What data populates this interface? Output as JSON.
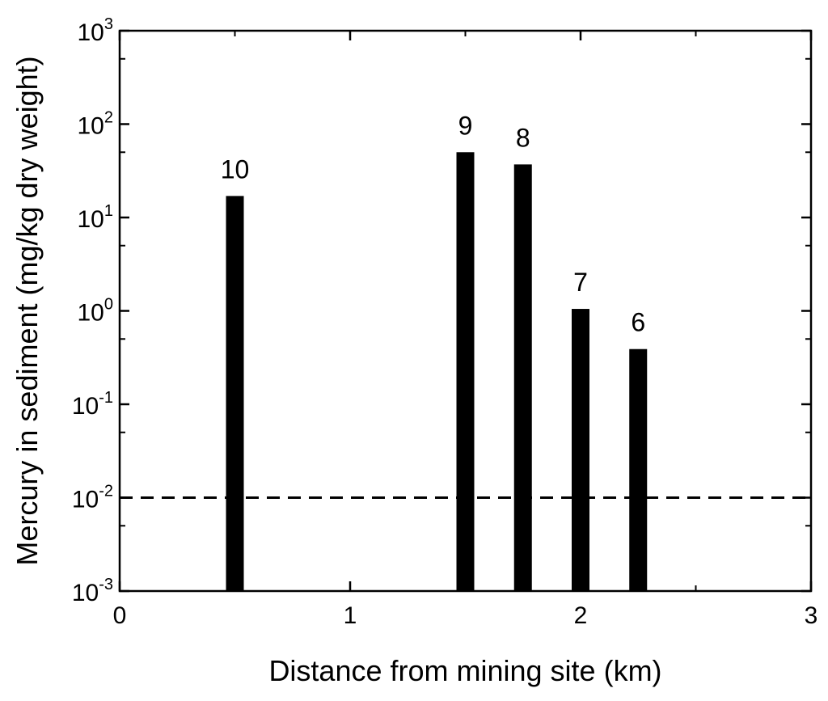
{
  "chart_data": {
    "type": "bar",
    "xlabel": "Distance from mining site (km)",
    "ylabel": "Mercury in sediment (mg/kg dry weight)",
    "xlim": [
      0,
      3
    ],
    "ylim": [
      0.001,
      1000
    ],
    "yscale": "log",
    "x_ticks": [
      "0",
      "1",
      "2",
      "3"
    ],
    "y_tick_exponents": [
      "-3",
      "-2",
      "-1",
      "0",
      "1",
      "2",
      "3"
    ],
    "y_tick_base": "10",
    "grid": false,
    "bars": [
      {
        "x": 0.5,
        "value": 17,
        "label": "10"
      },
      {
        "x": 1.5,
        "value": 50,
        "label": "9"
      },
      {
        "x": 1.75,
        "value": 37,
        "label": "8"
      },
      {
        "x": 2.0,
        "value": 1.05,
        "label": "7"
      },
      {
        "x": 2.25,
        "value": 0.39,
        "label": "6"
      }
    ],
    "reference_line": {
      "value": 0.01,
      "style": "dashed"
    },
    "colors": {
      "bar": "#000000",
      "axis": "#000000",
      "reference_line": "#000000"
    }
  }
}
